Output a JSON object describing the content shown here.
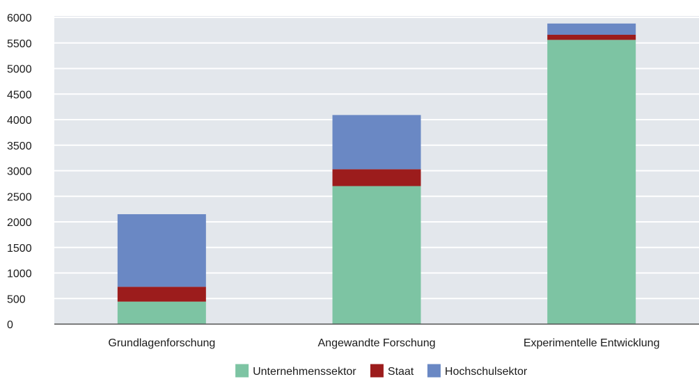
{
  "chart_data": {
    "type": "bar",
    "stacked": true,
    "categories": [
      "Grundlagenforschung",
      "Angewandte Forschung",
      "Experimentelle Entwicklung"
    ],
    "series": [
      {
        "name": "Unternehmenssektor",
        "color": "#7dc4a3",
        "values": [
          440,
          2700,
          5560
        ]
      },
      {
        "name": "Staat",
        "color": "#9c1c1c",
        "values": [
          290,
          330,
          100
        ]
      },
      {
        "name": "Hochschulsektor",
        "color": "#6a88c4",
        "values": [
          1420,
          1060,
          220
        ]
      }
    ],
    "ylim": [
      0,
      6000
    ],
    "yticks": [
      0,
      500,
      1000,
      1500,
      2000,
      2500,
      3000,
      3500,
      4000,
      4500,
      5000,
      5500,
      6000
    ],
    "grid": true,
    "legend_position": "bottom-center",
    "plot_background": "#e3e7ec",
    "title": "",
    "xlabel": "",
    "ylabel": ""
  }
}
